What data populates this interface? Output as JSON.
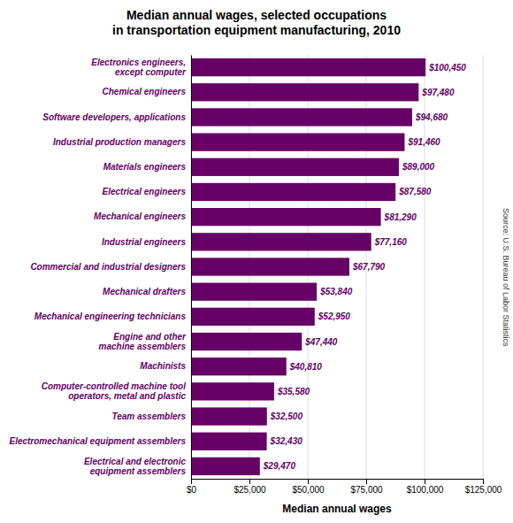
{
  "chart_data": {
    "type": "bar",
    "orientation": "horizontal",
    "title": "Median annual wages, selected occupations\nin transportation equipment manufacturing, 2010",
    "categories": [
      "Electronics engineers,\nexcept computer",
      "Chemical engineers",
      "Software developers, applications",
      "Industrial production managers",
      "Materials engineers",
      "Electrical engineers",
      "Mechanical engineers",
      "Industrial engineers",
      "Commercial and industrial designers",
      "Mechanical drafters",
      "Mechanical engineering technicians",
      "Engine and other\nmachine assemblers",
      "Machinists",
      "Computer-controlled  machine tool\noperators, metal and plastic",
      "Team assemblers",
      "Electromechanical equipment assemblers",
      "Electrical and electronic\nequipment assemblers"
    ],
    "values": [
      100450,
      97480,
      94680,
      91460,
      89000,
      87580,
      81290,
      77160,
      67790,
      53840,
      52950,
      47440,
      40810,
      35580,
      32500,
      32430,
      29470
    ],
    "value_labels": [
      "$100,450",
      "$97,480",
      "$94,680",
      "$91,460",
      "$89,000",
      "$87,580",
      "$81,290",
      "$77,160",
      "$67,790",
      "$53,840",
      "$52,950",
      "$47,440",
      "$40,810",
      "$35,580",
      "$32,500",
      "$32,430",
      "$29,470"
    ],
    "data_labels": true,
    "color": "#660066",
    "xlabel": "Median annual wages",
    "xlim": [
      0,
      125000
    ],
    "xticks": [
      {
        "value": 0,
        "label": "$0"
      },
      {
        "value": 25000,
        "label": "$25,000"
      },
      {
        "value": 50000,
        "label": "$50,000"
      },
      {
        "value": 75000,
        "label": "$75,000"
      },
      {
        "value": 100000,
        "label": "$100,000"
      },
      {
        "value": 125000,
        "label": "$125,000"
      }
    ],
    "grid": true,
    "annotations": [
      "Source: U.S. Bureau of Labor Statistics"
    ]
  }
}
